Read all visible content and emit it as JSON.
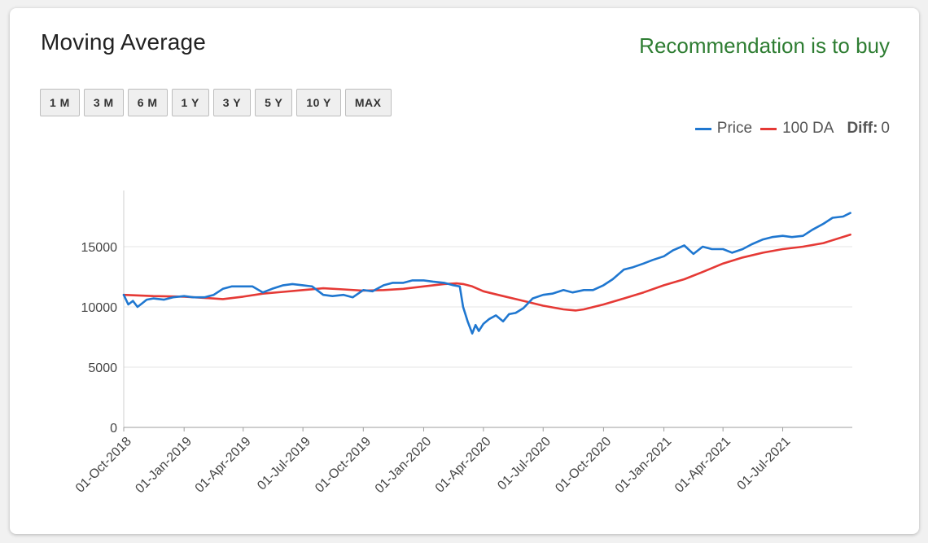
{
  "card": {
    "title": "Moving Average",
    "recommendation": "Recommendation is to buy"
  },
  "ranges": [
    "1 M",
    "3 M",
    "6 M",
    "1 Y",
    "3 Y",
    "5 Y",
    "10 Y",
    "MAX"
  ],
  "legend": {
    "price_label": "Price",
    "ma_label": "100 DA",
    "diff_label": "Diff:",
    "diff_value": "0"
  },
  "colors": {
    "price": "#1f77d0",
    "ma": "#e53935",
    "recommendation": "#2e7d32",
    "grid": "#e4e4e4"
  },
  "chart_data": {
    "type": "line",
    "title": "",
    "xlabel": "",
    "ylabel": "",
    "ylim": [
      0,
      20000
    ],
    "yticks": [
      0,
      5000,
      10000,
      15000
    ],
    "xlim": [
      "2018-10-01",
      "2021-10-15"
    ],
    "xticks": [
      "01-Oct-2018",
      "01-Jan-2019",
      "01-Apr-2019",
      "01-Jul-2019",
      "01-Oct-2019",
      "01-Jan-2020",
      "01-Apr-2020",
      "01-Jul-2020",
      "01-Oct-2020",
      "01-Jan-2021",
      "01-Apr-2021",
      "01-Jul-2021"
    ],
    "grid": true,
    "legend_position": "top-right",
    "series": [
      {
        "name": "Price",
        "x": [
          "2018-10-01",
          "2018-10-08",
          "2018-10-15",
          "2018-10-22",
          "2018-10-29",
          "2018-11-05",
          "2018-11-15",
          "2018-12-01",
          "2018-12-15",
          "2019-01-01",
          "2019-01-15",
          "2019-02-01",
          "2019-02-15",
          "2019-03-01",
          "2019-03-15",
          "2019-04-01",
          "2019-04-15",
          "2019-05-01",
          "2019-05-15",
          "2019-06-01",
          "2019-06-15",
          "2019-07-01",
          "2019-07-15",
          "2019-08-01",
          "2019-08-15",
          "2019-09-01",
          "2019-09-15",
          "2019-10-01",
          "2019-10-15",
          "2019-11-01",
          "2019-11-15",
          "2019-12-01",
          "2019-12-15",
          "2020-01-01",
          "2020-01-15",
          "2020-02-01",
          "2020-02-15",
          "2020-02-25",
          "2020-03-01",
          "2020-03-08",
          "2020-03-15",
          "2020-03-20",
          "2020-03-25",
          "2020-04-01",
          "2020-04-10",
          "2020-04-20",
          "2020-05-01",
          "2020-05-10",
          "2020-05-20",
          "2020-06-01",
          "2020-06-15",
          "2020-07-01",
          "2020-07-15",
          "2020-08-01",
          "2020-08-15",
          "2020-09-01",
          "2020-09-15",
          "2020-10-01",
          "2020-10-15",
          "2020-11-01",
          "2020-11-15",
          "2020-12-01",
          "2020-12-15",
          "2021-01-01",
          "2021-01-15",
          "2021-02-01",
          "2021-02-15",
          "2021-03-01",
          "2021-03-15",
          "2021-04-01",
          "2021-04-15",
          "2021-05-01",
          "2021-05-15",
          "2021-06-01",
          "2021-06-15",
          "2021-07-01",
          "2021-07-15",
          "2021-08-01",
          "2021-08-15",
          "2021-09-01",
          "2021-09-15",
          "2021-10-01",
          "2021-10-12"
        ],
        "y": [
          11000,
          10200,
          10500,
          10000,
          10300,
          10600,
          10700,
          10600,
          10800,
          10900,
          10800,
          10800,
          11000,
          11500,
          11700,
          11700,
          11700,
          11200,
          11500,
          11800,
          11900,
          11800,
          11700,
          11000,
          10900,
          11000,
          10800,
          11400,
          11300,
          11800,
          12000,
          12000,
          12200,
          12200,
          12100,
          12000,
          11800,
          11700,
          10000,
          8800,
          7800,
          8500,
          8000,
          8600,
          9000,
          9300,
          8800,
          9400,
          9500,
          9900,
          10700,
          11000,
          11100,
          11400,
          11200,
          11400,
          11400,
          11800,
          12300,
          13100,
          13300,
          13600,
          13900,
          14200,
          14700,
          15100,
          14400,
          15000,
          14800,
          14800,
          14500,
          14800,
          15200,
          15600,
          15800,
          15900,
          15800,
          15900,
          16400,
          16900,
          17400,
          17500,
          17800
        ]
      },
      {
        "name": "100 DA",
        "x": [
          "2018-10-01",
          "2018-11-15",
          "2019-01-01",
          "2019-02-01",
          "2019-03-01",
          "2019-04-01",
          "2019-05-01",
          "2019-06-01",
          "2019-07-01",
          "2019-08-01",
          "2019-09-01",
          "2019-10-01",
          "2019-11-01",
          "2019-12-01",
          "2020-01-01",
          "2020-02-01",
          "2020-02-20",
          "2020-03-01",
          "2020-03-15",
          "2020-04-01",
          "2020-05-01",
          "2020-06-01",
          "2020-07-01",
          "2020-08-01",
          "2020-08-20",
          "2020-09-01",
          "2020-10-01",
          "2020-11-01",
          "2020-12-01",
          "2021-01-01",
          "2021-02-01",
          "2021-03-01",
          "2021-04-01",
          "2021-05-01",
          "2021-06-01",
          "2021-07-01",
          "2021-08-01",
          "2021-09-01",
          "2021-10-12"
        ],
        "y": [
          11000,
          10900,
          10850,
          10750,
          10650,
          10850,
          11100,
          11250,
          11400,
          11550,
          11450,
          11350,
          11400,
          11500,
          11700,
          11900,
          11950,
          11900,
          11700,
          11300,
          10900,
          10500,
          10100,
          9800,
          9700,
          9800,
          10200,
          10700,
          11200,
          11800,
          12300,
          12900,
          13600,
          14100,
          14500,
          14800,
          15000,
          15300,
          16000
        ]
      }
    ]
  }
}
